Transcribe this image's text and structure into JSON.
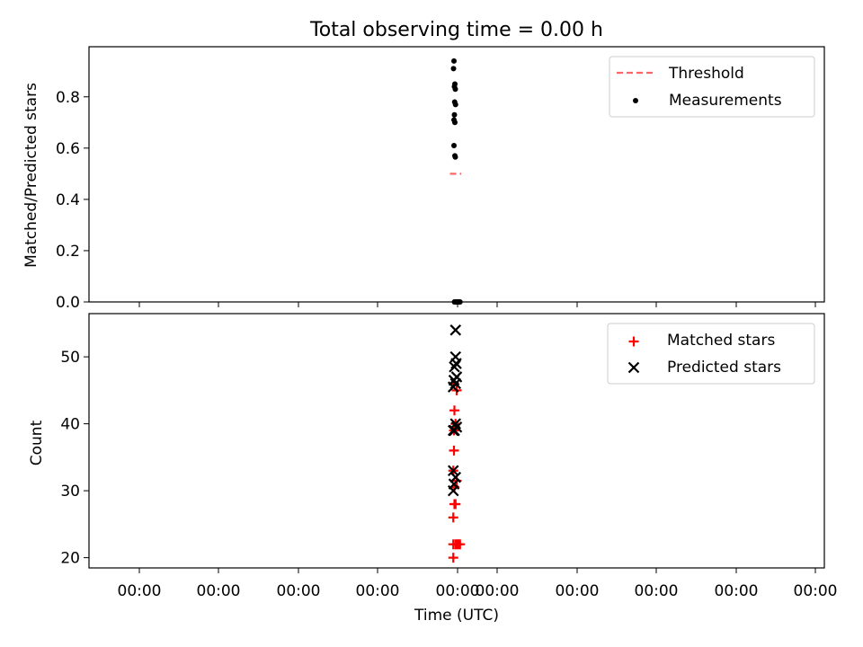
{
  "chart_data": [
    {
      "type": "scatter",
      "title": "Total observing time = 0.00 h",
      "ylabel": "Matched/Predicted stars",
      "ylim": [
        0.0,
        1.0
      ],
      "yticks": [
        "0.0",
        "0.2",
        "0.4",
        "0.6",
        "0.8"
      ],
      "grid": false,
      "legend_placement": "top-right",
      "series": [
        {
          "name": "Threshold",
          "kind": "line",
          "color": "#ff6666",
          "style": "dashed",
          "y": 0.5
        },
        {
          "name": "Measurements",
          "kind": "points",
          "marker": "dot",
          "color": "#000000",
          "points": [
            {
              "x": -0.12,
              "y": 0.94
            },
            {
              "x": -0.14,
              "y": 0.91
            },
            {
              "x": -0.08,
              "y": 0.85
            },
            {
              "x": -0.1,
              "y": 0.84
            },
            {
              "x": -0.06,
              "y": 0.83
            },
            {
              "x": -0.09,
              "y": 0.78
            },
            {
              "x": -0.05,
              "y": 0.77
            },
            {
              "x": -0.1,
              "y": 0.73
            },
            {
              "x": -0.12,
              "y": 0.71
            },
            {
              "x": -0.08,
              "y": 0.7
            },
            {
              "x": -0.12,
              "y": 0.61
            },
            {
              "x": -0.08,
              "y": 0.57
            },
            {
              "x": -0.06,
              "y": 0.565
            },
            {
              "x": -0.1,
              "y": 0.0
            },
            {
              "x": -0.05,
              "y": 0.0
            },
            {
              "x": 0.0,
              "y": 0.0
            },
            {
              "x": 0.05,
              "y": 0.0
            },
            {
              "x": 0.1,
              "y": 0.0
            },
            {
              "x": 0.15,
              "y": 0.0
            }
          ]
        }
      ]
    },
    {
      "type": "scatter",
      "xlabel": "Time (UTC)",
      "ylabel": "Count",
      "ylim": [
        18.2,
        56.0
      ],
      "yticks": [
        "20",
        "30",
        "40",
        "50"
      ],
      "xticks": [
        "00:00",
        "00:00",
        "00:00",
        "00:00",
        "00:00",
        "00:00",
        "00:00",
        "00:00",
        "00:00"
      ],
      "grid": false,
      "legend_placement": "top-right",
      "series": [
        {
          "name": "Matched stars",
          "marker": "plus",
          "color": "#ff0000",
          "points": [
            {
              "x": -0.15,
              "y": 20
            },
            {
              "x": -0.15,
              "y": 22
            },
            {
              "x": -0.05,
              "y": 22
            },
            {
              "x": 0.02,
              "y": 22
            },
            {
              "x": 0.08,
              "y": 22
            },
            {
              "x": 0.15,
              "y": 22
            },
            {
              "x": -0.15,
              "y": 26
            },
            {
              "x": -0.1,
              "y": 28
            },
            {
              "x": -0.05,
              "y": 28
            },
            {
              "x": -0.1,
              "y": 30.5
            },
            {
              "x": 0.0,
              "y": 31.5
            },
            {
              "x": -0.15,
              "y": 33
            },
            {
              "x": -0.12,
              "y": 36
            },
            {
              "x": -0.12,
              "y": 39
            },
            {
              "x": -0.05,
              "y": 40
            },
            {
              "x": -0.1,
              "y": 42
            },
            {
              "x": -0.12,
              "y": 46
            },
            {
              "x": 0.0,
              "y": 45
            }
          ]
        },
        {
          "name": "Predicted stars",
          "marker": "x",
          "color": "#000000",
          "points": [
            {
              "x": -0.15,
              "y": 30
            },
            {
              "x": -0.12,
              "y": 31
            },
            {
              "x": -0.05,
              "y": 32
            },
            {
              "x": -0.15,
              "y": 33
            },
            {
              "x": -0.15,
              "y": 39
            },
            {
              "x": -0.1,
              "y": 39
            },
            {
              "x": 0.0,
              "y": 39.5
            },
            {
              "x": -0.05,
              "y": 40
            },
            {
              "x": -0.15,
              "y": 45.5
            },
            {
              "x": -0.05,
              "y": 46
            },
            {
              "x": -0.12,
              "y": 46.5
            },
            {
              "x": 0.0,
              "y": 47
            },
            {
              "x": -0.1,
              "y": 48.5
            },
            {
              "x": -0.02,
              "y": 49
            },
            {
              "x": -0.05,
              "y": 50
            },
            {
              "x": -0.05,
              "y": 54
            }
          ]
        }
      ]
    }
  ]
}
